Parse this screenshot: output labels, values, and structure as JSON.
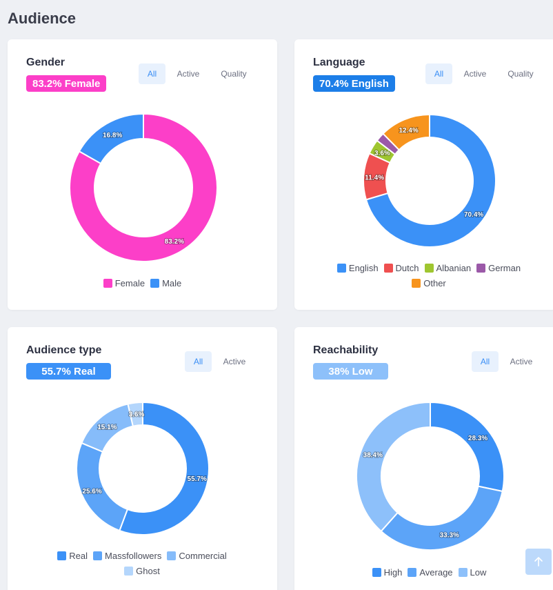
{
  "page": {
    "title": "Audience"
  },
  "cards": [
    {
      "key": "gender",
      "title": "Gender",
      "badge": "83.2% Female",
      "badge_color": "#fc3fc8",
      "tabs": [
        {
          "label": "All",
          "active": true
        },
        {
          "label": "Active",
          "active": false
        },
        {
          "label": "Quality",
          "active": false
        }
      ],
      "chart_data": {
        "type": "pie",
        "categories": [
          "Female",
          "Male"
        ],
        "values": [
          83.2,
          16.8
        ],
        "colors": [
          "#fc3fc8",
          "#3b91f7"
        ]
      }
    },
    {
      "key": "language",
      "title": "Language",
      "badge": "70.4% English",
      "badge_color": "#1c7ee8",
      "tabs": [
        {
          "label": "All",
          "active": true
        },
        {
          "label": "Active",
          "active": false
        },
        {
          "label": "Quality",
          "active": false
        }
      ],
      "chart_data": {
        "type": "pie",
        "categories": [
          "English",
          "Dutch",
          "Albanian",
          "German",
          "Other"
        ],
        "values": [
          70.4,
          11.4,
          3.6,
          2.2,
          12.4
        ],
        "value_labels": [
          "70.4%",
          "11.4%",
          "3.6%",
          "",
          "12.4%"
        ],
        "colors": [
          "#3b91f7",
          "#ef5050",
          "#9fc630",
          "#9b59a8",
          "#f7941d"
        ]
      }
    },
    {
      "key": "audience-type",
      "title": "Audience type",
      "badge": "55.7% Real",
      "badge_color": "#3b91f7",
      "tabs": [
        {
          "label": "All",
          "active": true
        },
        {
          "label": "Active",
          "active": false
        }
      ],
      "chart_data": {
        "type": "pie",
        "categories": [
          "Real",
          "Massfollowers",
          "Commercial",
          "Ghost"
        ],
        "values": [
          55.7,
          25.6,
          15.1,
          3.6
        ],
        "colors": [
          "#3b91f7",
          "#5ca4f8",
          "#86bcfa",
          "#b4d6fc"
        ]
      }
    },
    {
      "key": "reachability",
      "title": "Reachability",
      "badge": "38% Low",
      "badge_color": "#8dc0fa",
      "tabs": [
        {
          "label": "All",
          "active": true
        },
        {
          "label": "Active",
          "active": false
        }
      ],
      "chart_data": {
        "type": "pie",
        "categories": [
          "High",
          "Average",
          "Low"
        ],
        "values": [
          28.3,
          33.3,
          38.4
        ],
        "colors": [
          "#3b91f7",
          "#5ca4f8",
          "#8dc0fa"
        ]
      }
    }
  ],
  "scroll_top": {
    "icon": "arrow-up-icon"
  }
}
